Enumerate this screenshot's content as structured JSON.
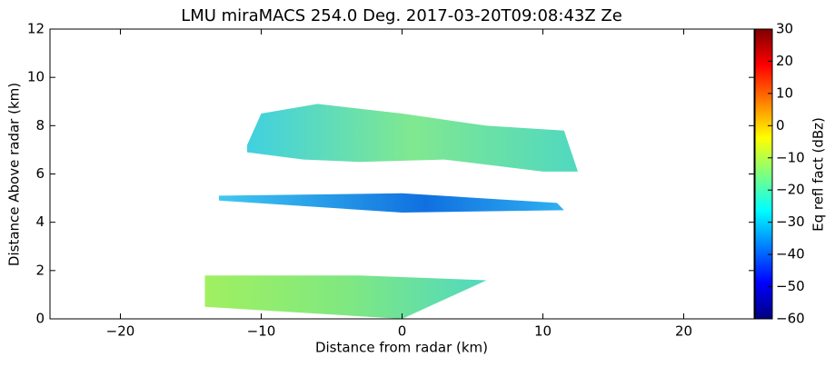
{
  "chart_data": {
    "type": "image",
    "title": "LMU miraMACS 254.0 Deg. 2017-03-20T09:08:43Z  Ze",
    "xlabel": "Distance from radar (km)",
    "ylabel": "Distance Above radar  (km)",
    "xlim": [
      -25,
      25
    ],
    "xticks": [
      {
        "value": -20,
        "label": "−20"
      },
      {
        "value": -10,
        "label": "−10"
      },
      0,
      10,
      20
    ],
    "ylim": [
      0,
      12
    ],
    "yticks": [
      0,
      2,
      4,
      6,
      8,
      10,
      12
    ],
    "grid": false,
    "colorbar": {
      "label": "Eq refl fact (dBz)",
      "colormap": "jet",
      "lim": [
        -60,
        30
      ],
      "ticks": [
        {
          "value": -60,
          "label": "−60"
        },
        {
          "value": -50,
          "label": "−50"
        },
        {
          "value": -40,
          "label": "−40"
        },
        {
          "value": -30,
          "label": "−30"
        },
        {
          "value": -20,
          "label": "−20"
        },
        {
          "value": -10,
          "label": "−10"
        },
        0,
        10,
        20,
        30
      ]
    }
  }
}
